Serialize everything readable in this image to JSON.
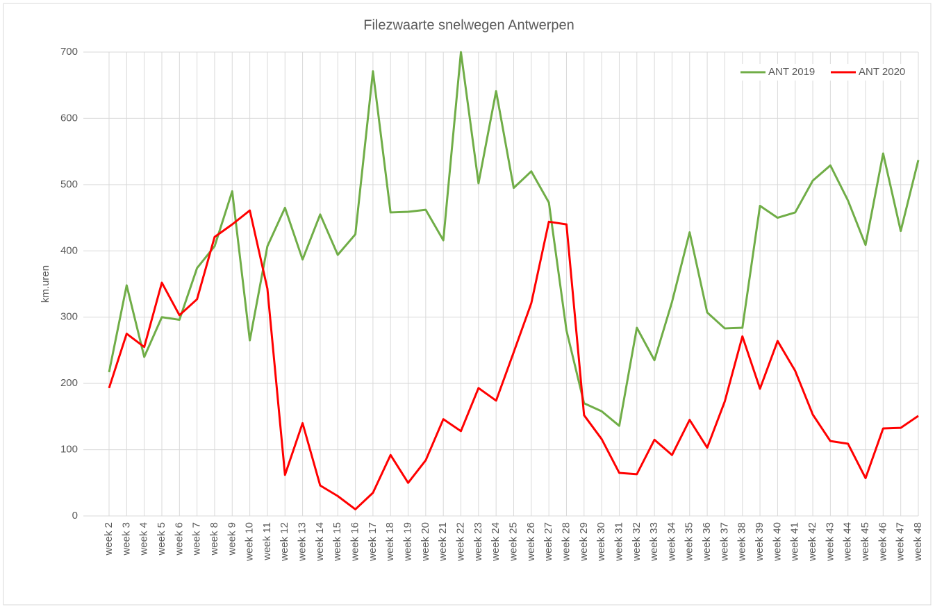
{
  "chart_data": {
    "type": "line",
    "title": "Filezwaarte snelwegen Antwerpen",
    "y_label": "km.uren",
    "categories": [
      "week 2",
      "week 3",
      "week 4",
      "week 5",
      "week 6",
      "week 7",
      "week 8",
      "week 9",
      "week 10",
      "week 11",
      "week 12",
      "week 13",
      "week 14",
      "week 15",
      "week 16",
      "week 17",
      "week 18",
      "week 19",
      "week 20",
      "week 21",
      "week 22",
      "week 23",
      "week 24",
      "week 25",
      "week 26",
      "week 27",
      "week 28",
      "week 29",
      "week 30",
      "week 31",
      "week 32",
      "week 33",
      "week 34",
      "week 35",
      "week 36",
      "week 37",
      "week 38",
      "week 39",
      "week 40",
      "week 41",
      "week 42",
      "week 43",
      "week 44",
      "week 45",
      "week 46",
      "week 47",
      "week 48"
    ],
    "series": [
      {
        "name": "ANT 2019",
        "color": "#70ad47",
        "values": [
          217,
          348,
          240,
          300,
          296,
          374,
          407,
          490,
          265,
          407,
          465,
          387,
          455,
          394,
          425,
          671,
          458,
          459,
          462,
          416,
          700,
          502,
          641,
          495,
          520,
          473,
          280,
          170,
          158,
          136,
          284,
          235,
          323,
          428,
          307,
          283,
          284,
          468,
          450,
          458,
          506,
          529,
          476,
          409,
          547,
          430,
          537
        ]
      },
      {
        "name": "ANT 2020",
        "color": "#ff0000",
        "values": [
          193,
          275,
          255,
          352,
          303,
          327,
          421,
          440,
          461,
          343,
          62,
          140,
          46,
          30,
          10,
          35,
          92,
          50,
          84,
          146,
          128,
          193,
          174,
          247,
          321,
          444,
          440,
          152,
          116,
          65,
          63,
          115,
          92,
          145,
          103,
          173,
          271,
          192,
          264,
          219,
          153,
          113,
          109,
          57,
          132,
          133,
          151
        ]
      }
    ],
    "ylim": [
      0,
      700
    ],
    "yticks": [
      0,
      100,
      200,
      300,
      400,
      500,
      600,
      700
    ],
    "grid": true,
    "legend": "top-right"
  }
}
